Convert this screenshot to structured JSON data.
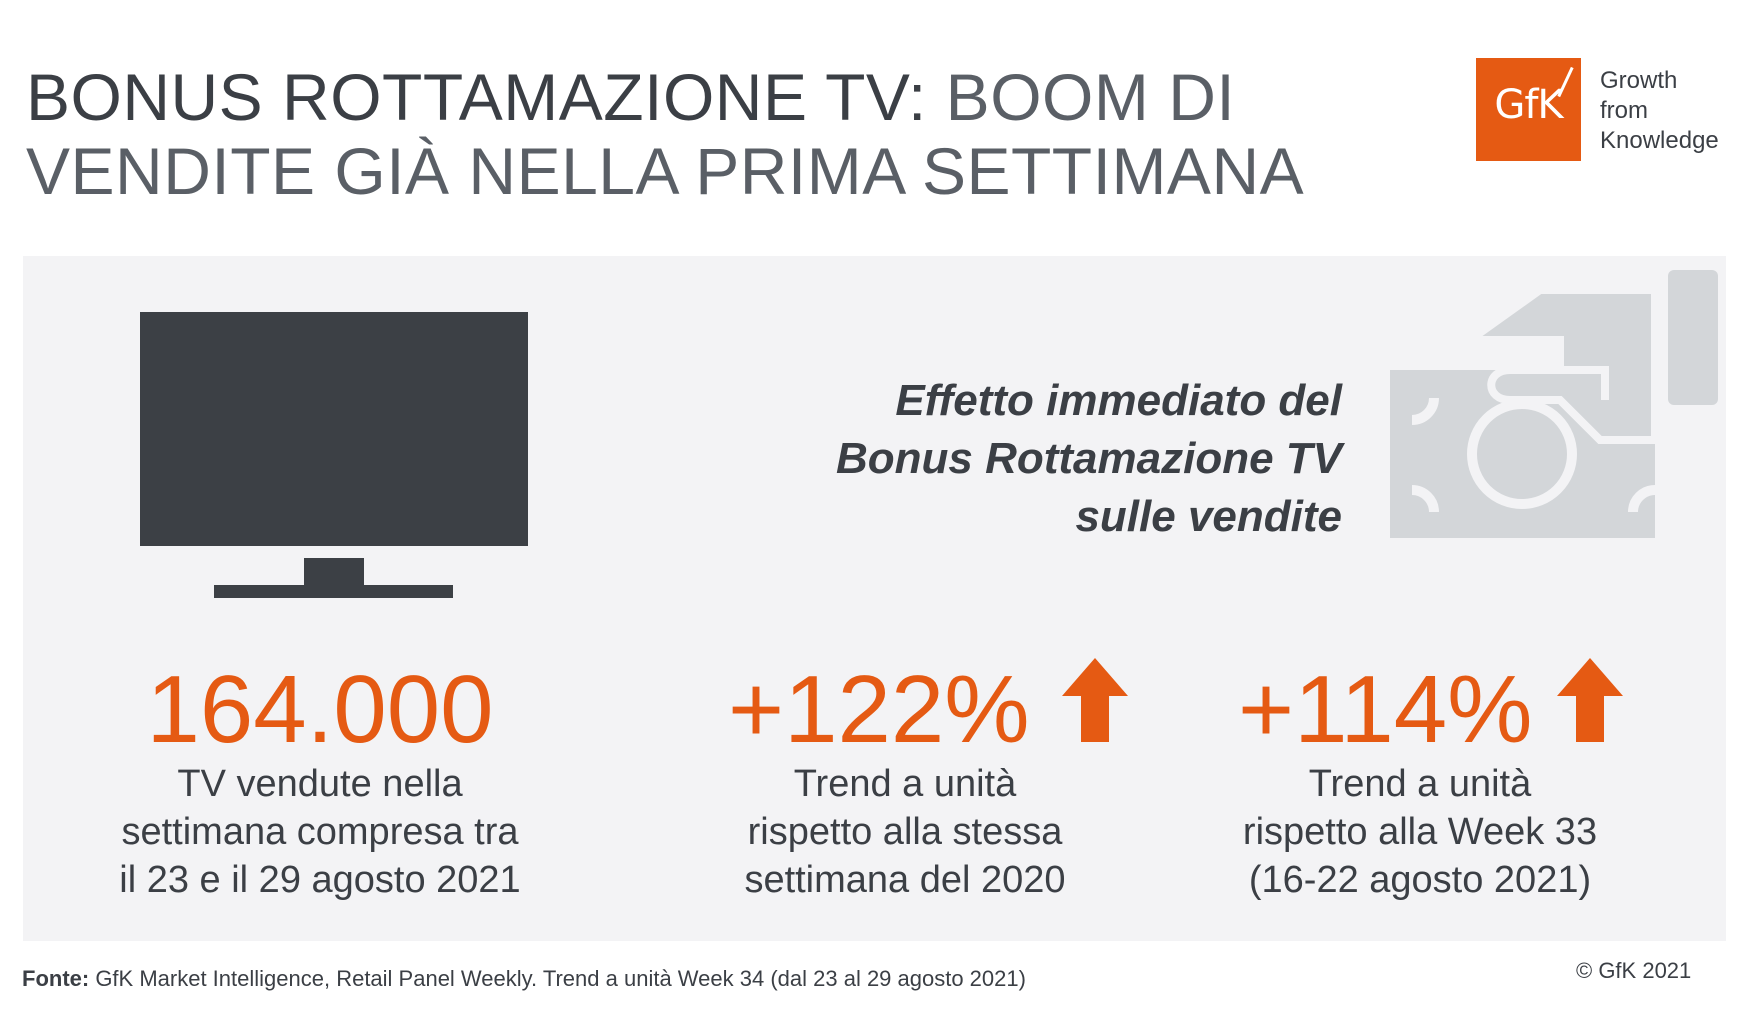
{
  "header": {
    "title_bold": "BONUS ROTTAMAZIONE TV:",
    "title_rest_line1": " BOOM DI",
    "title_line2": "VENDITE GIÀ NELLA PRIMA SETTIMANA"
  },
  "logo": {
    "brand": "GfK",
    "tagline": [
      "Growth",
      "from",
      "Knowledge"
    ],
    "color": "#e55a13"
  },
  "effect": {
    "lines": [
      "Effetto immediato del",
      "Bonus Rottamazione TV",
      "sulle vendite"
    ]
  },
  "stats": [
    {
      "value": "164.000",
      "desc": [
        "TV vendute nella",
        "settimana compresa tra",
        "il 23 e il 29 agosto 2021"
      ],
      "arrow": false
    },
    {
      "value": "+122%",
      "desc": [
        "Trend a unità",
        "rispetto alla stessa",
        "settimana del 2020"
      ],
      "arrow": true,
      "arrow_icon": "arrow-up-icon"
    },
    {
      "value": "+114%",
      "desc": [
        "Trend a unità",
        "rispetto alla Week 33",
        "(16-22 agosto 2021)"
      ],
      "arrow": true,
      "arrow_icon": "arrow-up-icon"
    }
  ],
  "footer": {
    "source_label": "Fonte:",
    "source_text": " GfK Market Intelligence, Retail Panel Weekly. Trend a unità Week 34 (dal 23 al 29 agosto 2021)",
    "copyright": "© GfK 2021"
  },
  "colors": {
    "accent": "#e55a13",
    "text": "#3b3f45",
    "panel": "#f3f3f5",
    "icon_gray": "#d3d6d9"
  }
}
